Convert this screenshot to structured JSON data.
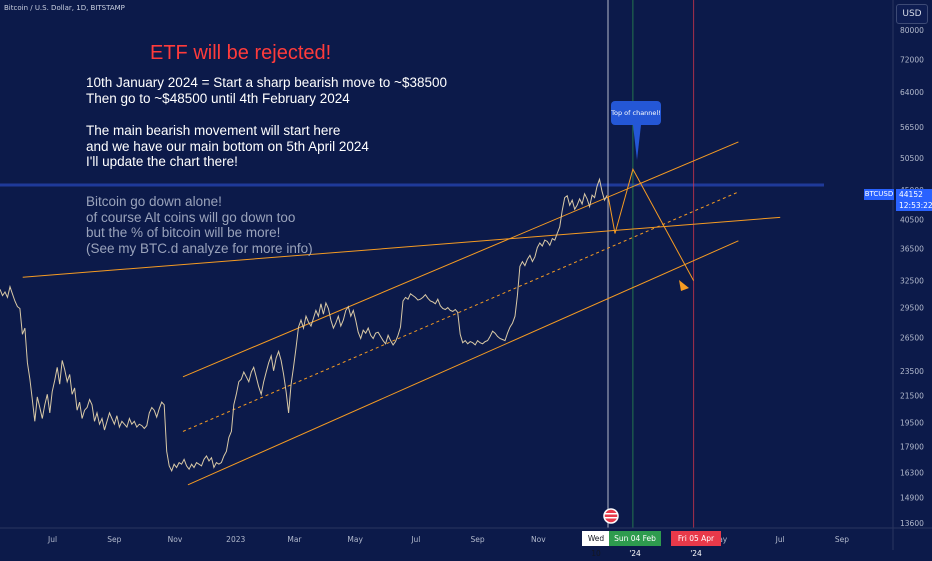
{
  "header": {
    "symbol_title": "Bitcoin / U.S. Dollar, 1D, BITSTAMP",
    "currency_button": "USD"
  },
  "annotations": {
    "title": "ETF will be rejected!",
    "block1": [
      "10th January 2024 = Start a sharp bearish move to ~$38500",
      "Then go to ~$48500 until 4th February 2024"
    ],
    "block2": [
      "The main bearish movement will start here",
      "and we have our main bottom on 5th April 2024",
      "I'll update the chart there!"
    ],
    "block3": [
      "Bitcoin go down alone!",
      "of course Alt coins will go down too",
      "but the % of bitcoin will be more!",
      "(See my BTC.d analyze for more info)"
    ],
    "callout": "Top of channel!"
  },
  "price_scale": {
    "ticks": [
      "80000",
      "72000",
      "64000",
      "56500",
      "50500",
      "45000",
      "40500",
      "36500",
      "32500",
      "29500",
      "26500",
      "23500",
      "21500",
      "19500",
      "17900",
      "16300",
      "14900",
      "13600"
    ],
    "symbol_tag": "BTCUSD",
    "last_price": "44152",
    "countdown": "12:53:22"
  },
  "time_scale": {
    "ticks": [
      "Jul",
      "Sep",
      "Nov",
      "2023",
      "Mar",
      "May",
      "Jul",
      "Sep",
      "Nov",
      "May",
      "Jul",
      "Sep"
    ],
    "date_tags": [
      "Wed 10",
      "Sun 04 Feb '24",
      "Fri 05 Apr '24"
    ]
  },
  "colors": {
    "background": "#0c1a4a",
    "channel": "#f59b23",
    "callout": "#2457d6",
    "title_red": "#ff3b3b",
    "price_blue": "#2962ff",
    "tag_green": "#2e9b4e",
    "tag_red": "#e8394a"
  },
  "chart_data": {
    "type": "line",
    "log_scale": true,
    "grid": false,
    "ylim": [
      13600,
      80000
    ],
    "series": [
      {
        "values": [
          31500,
          30800,
          31200,
          30600,
          31800,
          31000,
          30200,
          29600,
          29400,
          26800,
          27400,
          24200,
          22800,
          21200,
          19600,
          21400,
          20600,
          19800,
          20800,
          21600,
          20200,
          21800,
          22700,
          23800,
          22400,
          24400,
          23600,
          22600,
          23200,
          21600,
          22100,
          20400,
          21000,
          19800,
          20400,
          20600,
          21200,
          20800,
          19600,
          20200,
          19400,
          19800,
          19000,
          19600,
          20200,
          19800,
          19400,
          20000,
          19200,
          19600,
          19400,
          19200,
          19800,
          19400,
          19600,
          19200,
          19400,
          19300,
          19100,
          19300,
          20200,
          20600,
          20400,
          19900,
          20500,
          21000,
          20800,
          17600,
          16700,
          16400,
          16800,
          16600,
          16900,
          16800,
          17100,
          16700,
          16500,
          16800,
          16600,
          16900,
          16800,
          16700,
          17100,
          17300,
          17000,
          17200,
          16600,
          16900,
          16800,
          16900,
          17300,
          17600,
          18500,
          18900,
          20800,
          21600,
          22600,
          22800,
          23400,
          23000,
          22600,
          23400,
          23800,
          23000,
          22200,
          21600,
          22600,
          23400,
          24200,
          24800,
          23500,
          24600,
          25200,
          24400,
          23200,
          21800,
          20200,
          22400,
          23800,
          25500,
          27500,
          28200,
          27400,
          28600,
          28000,
          27600,
          28400,
          29200,
          28600,
          29900,
          28800,
          30000,
          29400,
          28200,
          27400,
          27900,
          28600,
          27600,
          28200,
          29200,
          29600,
          28600,
          29200,
          28200,
          27000,
          26400,
          27200,
          26900,
          27400,
          26700,
          26400,
          26900,
          27000,
          26600,
          26200,
          25900,
          26700,
          26200,
          25800,
          26100,
          26700,
          27500,
          30200,
          30600,
          30400,
          31000,
          30800,
          30600,
          30300,
          30400,
          30600,
          30900,
          30500,
          30200,
          30100,
          29900,
          30400,
          29700,
          29400,
          29300,
          29500,
          29200,
          29100,
          29300,
          29000,
          26800,
          26000,
          26200,
          25900,
          26100,
          26000,
          25800,
          26200,
          26000,
          25900,
          26100,
          26200,
          26600,
          27100,
          26900,
          26600,
          26400,
          26300,
          26200,
          26900,
          27500,
          27900,
          28600,
          30800,
          34200,
          34800,
          34300,
          35100,
          35600,
          34800,
          35400,
          36600,
          37200,
          36800,
          37600,
          37400,
          36900,
          37800,
          37600,
          38500,
          39400,
          41800,
          43800,
          44100,
          42600,
          43400,
          42000,
          42600,
          43600,
          42800,
          44400,
          43600,
          42400,
          44200,
          43800,
          45600,
          46800,
          44800,
          43400,
          44152
        ]
      }
    ],
    "channel": {
      "upper": {
        "from": [
          "2022-11-09",
          23000
        ],
        "to": [
          "2024-05-20",
          53500
        ]
      },
      "lower": {
        "from": [
          "2022-11-14",
          15600
        ],
        "to": [
          "2024-05-20",
          37500
        ]
      },
      "mid": {
        "from": [
          "2022-11-09",
          18900
        ],
        "to": [
          "2024-05-20",
          44700
        ]
      },
      "support": {
        "from": [
          "2022-06-01",
          32900
        ],
        "to": [
          "2024-07-01",
          40800
        ]
      }
    },
    "projection": [
      [
        "2024-01-10",
        44152
      ],
      [
        "2024-01-17",
        38500
      ],
      [
        "2024-02-04",
        48500
      ],
      [
        "2024-04-05",
        32500
      ]
    ],
    "last_price": 44152
  }
}
